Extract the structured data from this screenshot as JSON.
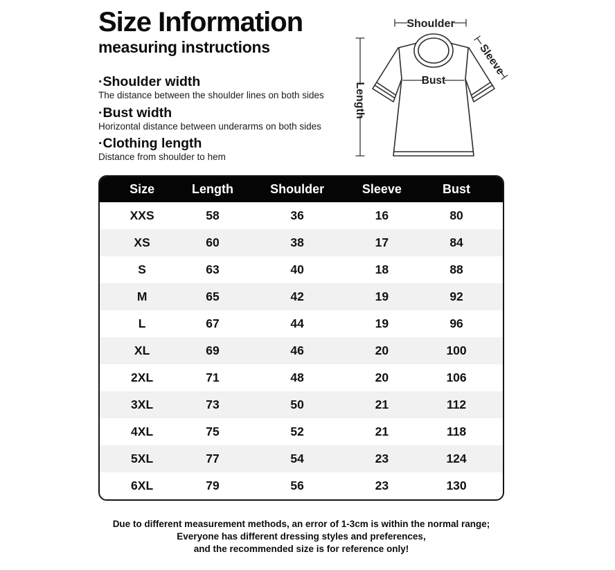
{
  "header": {
    "title": "Size Information",
    "subtitle": "measuring instructions"
  },
  "definitions": [
    {
      "term": "·Shoulder width",
      "description": "The distance between the shoulder lines on both sides"
    },
    {
      "term": "·Bust width",
      "description": "Horizontal distance between underarms on both sides"
    },
    {
      "term": "·Clothing length",
      "description": "Distance from shoulder to hem"
    }
  ],
  "diagram": {
    "labels": {
      "shoulder": "Shoulder",
      "sleeve": "Sleeve",
      "length": "Length",
      "bust": "Bust"
    }
  },
  "size_table": {
    "columns": [
      "Size",
      "Length",
      "Shoulder",
      "Sleeve",
      "Bust"
    ],
    "rows": [
      [
        "XXS",
        "58",
        "36",
        "16",
        "80"
      ],
      [
        "XS",
        "60",
        "38",
        "17",
        "84"
      ],
      [
        "S",
        "63",
        "40",
        "18",
        "88"
      ],
      [
        "M",
        "65",
        "42",
        "19",
        "92"
      ],
      [
        "L",
        "67",
        "44",
        "19",
        "96"
      ],
      [
        "XL",
        "69",
        "46",
        "20",
        "100"
      ],
      [
        "2XL",
        "71",
        "48",
        "20",
        "106"
      ],
      [
        "3XL",
        "73",
        "50",
        "21",
        "112"
      ],
      [
        "4XL",
        "75",
        "52",
        "21",
        "118"
      ],
      [
        "5XL",
        "77",
        "54",
        "23",
        "124"
      ],
      [
        "6XL",
        "79",
        "56",
        "23",
        "130"
      ]
    ]
  },
  "footer": {
    "lines": [
      "Due to different measurement methods, an error of 1-3cm is within the normal range;",
      "Everyone has different dressing styles and preferences,",
      "and the recommended size is for reference only!"
    ]
  },
  "colors": {
    "table_header_bg": "#050505",
    "table_header_text": "#ffffff",
    "row_alt_bg": "#f1f1f1",
    "text": "#111111"
  }
}
